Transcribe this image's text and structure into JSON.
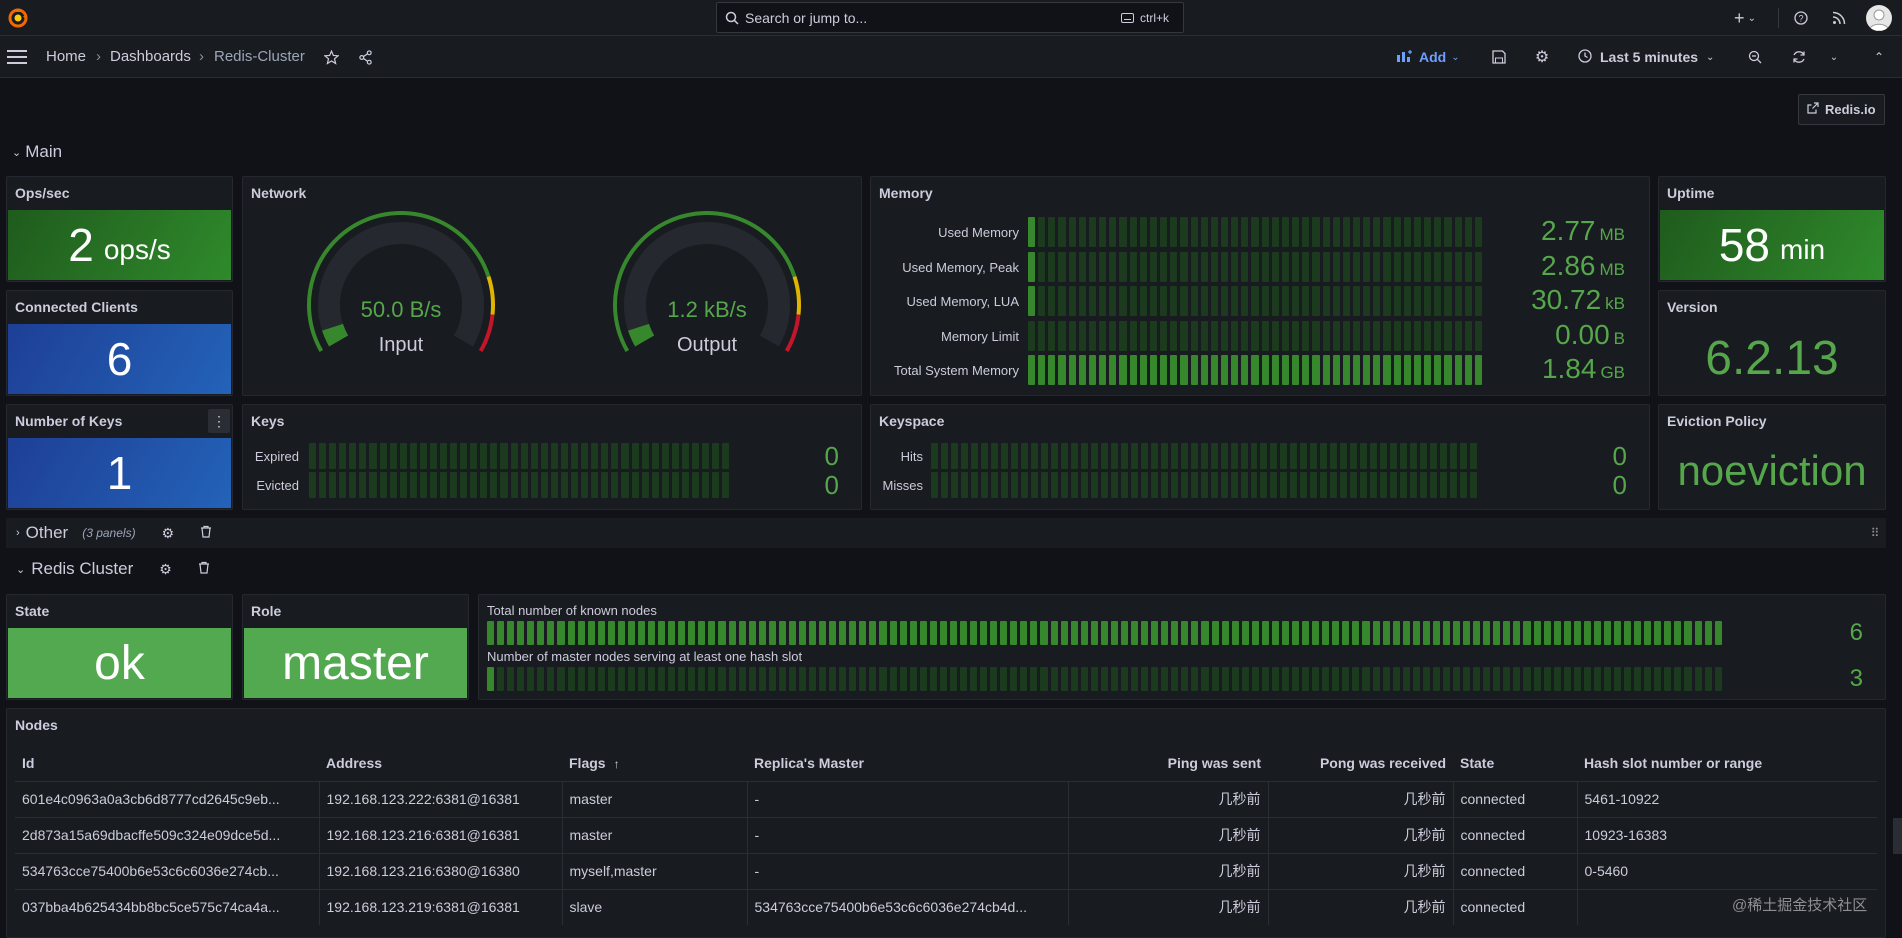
{
  "topbar": {
    "search_placeholder": "Search or jump to...",
    "search_shortcut": "ctrl+k",
    "add_icon": "plus-icon",
    "help_icon": "help-icon",
    "news_icon": "rss-icon"
  },
  "navbar": {
    "breadcrumb": [
      "Home",
      "Dashboards",
      "Redis-Cluster"
    ],
    "separator": "›",
    "add_label": "Add",
    "time_range": "Last 5 minutes",
    "accent": "#6e9fff"
  },
  "link_button": "Redis.io",
  "rows": {
    "main": "Main",
    "other": "Other",
    "other_count": "(3 panels)",
    "cluster": "Redis Cluster"
  },
  "ops": {
    "title": "Ops/sec",
    "value": "2",
    "unit": "ops/s"
  },
  "clients": {
    "title": "Connected Clients",
    "value": "6"
  },
  "keys_count": {
    "title": "Number of Keys",
    "value": "1"
  },
  "network": {
    "title": "Network",
    "input": {
      "label": "Input",
      "value": "50.0 B/s",
      "level": 0.05
    },
    "output": {
      "label": "Output",
      "value": "1.2 kB/s",
      "level": 0.05
    }
  },
  "memory": {
    "title": "Memory",
    "rows": [
      {
        "label": "Used Memory",
        "value": "2.77",
        "unit": "MB",
        "fill": 0.02
      },
      {
        "label": "Used Memory, Peak",
        "value": "2.86",
        "unit": "MB",
        "fill": 0.02
      },
      {
        "label": "Used Memory, LUA",
        "value": "30.72",
        "unit": "kB",
        "fill": 0.02
      },
      {
        "label": "Memory Limit",
        "value": "0.00",
        "unit": "B",
        "fill": 0.0
      },
      {
        "label": "Total System Memory",
        "value": "1.84",
        "unit": "GB",
        "fill": 1.0
      }
    ]
  },
  "uptime": {
    "title": "Uptime",
    "value": "58",
    "unit": "min"
  },
  "version": {
    "title": "Version",
    "value": "6.2.13"
  },
  "eviction": {
    "title": "Eviction Policy",
    "value": "noeviction"
  },
  "keys": {
    "title": "Keys",
    "rows": [
      {
        "label": "Expired",
        "value": "0"
      },
      {
        "label": "Evicted",
        "value": "0"
      }
    ]
  },
  "keyspace": {
    "title": "Keyspace",
    "rows": [
      {
        "label": "Hits",
        "value": "0"
      },
      {
        "label": "Misses",
        "value": "0"
      }
    ]
  },
  "state": {
    "title": "State",
    "value": "ok"
  },
  "role": {
    "title": "Role",
    "value": "master"
  },
  "cluster_nodes": {
    "rows": [
      {
        "label": "Total number of known nodes",
        "value": "6",
        "fill": 1.0
      },
      {
        "label": "Number of master nodes serving at least one hash slot",
        "value": "3",
        "fill": 0.01
      }
    ]
  },
  "nodes": {
    "title": "Nodes",
    "columns": [
      "Id",
      "Address",
      "Flags",
      "Replica's Master",
      "Ping was sent",
      "Pong was received",
      "State",
      "Hash slot number or range"
    ],
    "sort_indicator": "↑",
    "rows": [
      [
        "601e4c0963a0a3cb6d8777cd2645c9eb...",
        "192.168.123.222:6381@16381",
        "master",
        "-",
        "几秒前",
        "几秒前",
        "connected",
        "5461-10922"
      ],
      [
        "2d873a15a69dbacffe509c324e09dce5d...",
        "192.168.123.216:6381@16381",
        "master",
        "-",
        "几秒前",
        "几秒前",
        "connected",
        "10923-16383"
      ],
      [
        "534763cce75400b6e53c6c6036e274cb...",
        "192.168.123.216:6380@16380",
        "myself,master",
        "-",
        "几秒前",
        "几秒前",
        "connected",
        "0-5460"
      ],
      [
        "037bba4b625434bb8bc5ce575c74ca4a...",
        "192.168.123.219:6381@16381",
        "slave",
        "534763cce75400b6e53c6c6036e274cb4d...",
        "几秒前",
        "几秒前",
        "connected",
        ""
      ]
    ]
  },
  "watermark": "@稀土掘金技术社区"
}
